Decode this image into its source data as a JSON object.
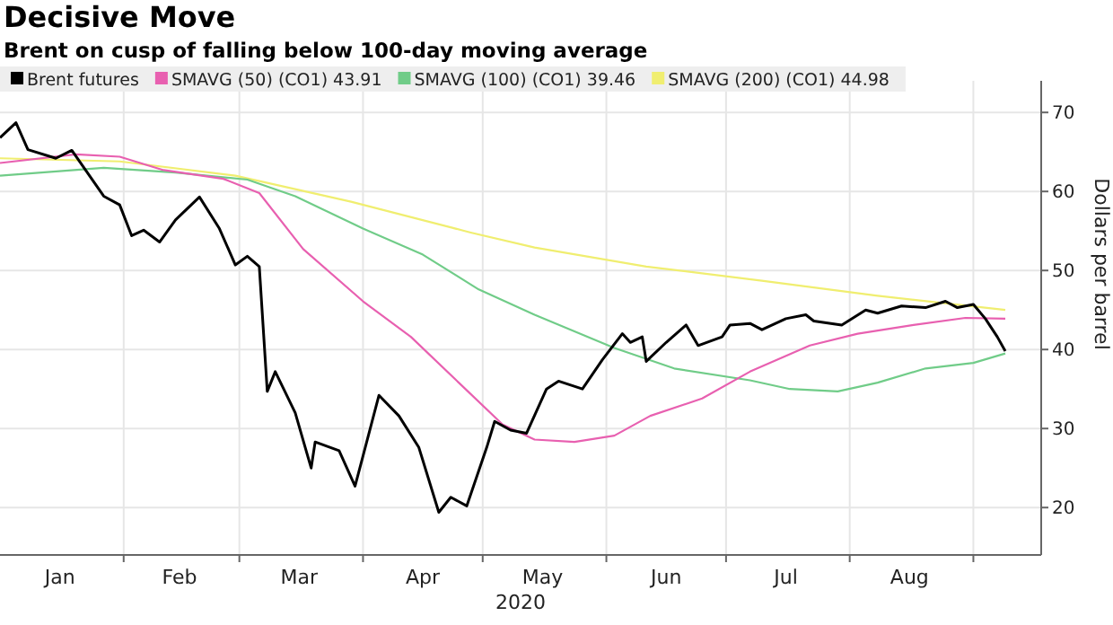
{
  "chart_data": {
    "type": "line",
    "title": "Decisive Move",
    "subtitle": "Brent on cusp of falling below 100-day moving average",
    "xlabel": "2020",
    "ylabel": "Dollars per barrel",
    "xlim": [
      "2020-01-01",
      "2020-09-18"
    ],
    "ylim": [
      14,
      74
    ],
    "xticks": [
      {
        "value": "2020-02-01",
        "label": null
      },
      {
        "value": "2020-03-01",
        "label": null
      },
      {
        "value": "2020-04-01",
        "label": null
      },
      {
        "value": "2020-05-01",
        "label": null
      },
      {
        "value": "2020-06-01",
        "label": null
      },
      {
        "value": "2020-07-01",
        "label": null
      },
      {
        "value": "2020-08-01",
        "label": null
      },
      {
        "value": "2020-09-01",
        "label": null
      },
      {
        "value": "2020-01-16",
        "label": "Jan"
      },
      {
        "value": "2020-02-15",
        "label": "Feb"
      },
      {
        "value": "2020-03-16",
        "label": "Mar"
      },
      {
        "value": "2020-04-16",
        "label": "Apr"
      },
      {
        "value": "2020-05-16",
        "label": "May"
      },
      {
        "value": "2020-06-16",
        "label": "Jun"
      },
      {
        "value": "2020-07-16",
        "label": "Jul"
      },
      {
        "value": "2020-08-16",
        "label": "Aug"
      }
    ],
    "yticks": [
      20,
      30,
      40,
      50,
      60,
      70
    ],
    "grid": true,
    "legend": "top left",
    "marker": "none",
    "line_style": "solid",
    "series": [
      {
        "name": "Brent futures",
        "color": "#000000",
        "x": [
          "2020-01-01",
          "2020-01-05",
          "2020-01-08",
          "2020-01-15",
          "2020-01-19",
          "2020-01-27",
          "2020-01-31",
          "2020-02-03",
          "2020-02-06",
          "2020-02-10",
          "2020-02-14",
          "2020-02-20",
          "2020-02-25",
          "2020-02-29",
          "2020-03-03",
          "2020-03-06",
          "2020-03-08",
          "2020-03-10",
          "2020-03-15",
          "2020-03-19",
          "2020-03-20",
          "2020-03-26",
          "2020-03-30",
          "2020-04-05",
          "2020-04-10",
          "2020-04-15",
          "2020-04-20",
          "2020-04-23",
          "2020-04-27",
          "2020-05-02",
          "2020-05-04",
          "2020-05-08",
          "2020-05-12",
          "2020-05-17",
          "2020-05-20",
          "2020-05-26",
          "2020-05-31",
          "2020-06-05",
          "2020-06-07",
          "2020-06-10",
          "2020-06-11",
          "2020-06-16",
          "2020-06-21",
          "2020-06-24",
          "2020-06-30",
          "2020-07-02",
          "2020-07-07",
          "2020-07-10",
          "2020-07-16",
          "2020-07-21",
          "2020-07-23",
          "2020-07-30",
          "2020-08-05",
          "2020-08-08",
          "2020-08-14",
          "2020-08-20",
          "2020-08-25",
          "2020-08-28",
          "2020-09-01",
          "2020-09-04",
          "2020-09-07",
          "2020-09-09"
        ],
        "values": [
          66.8,
          68.7,
          65.3,
          64.2,
          65.2,
          59.4,
          58.3,
          54.4,
          55.1,
          53.6,
          56.4,
          59.3,
          55.3,
          50.7,
          51.8,
          50.5,
          34.7,
          37.2,
          32.0,
          25.0,
          28.3,
          27.2,
          22.7,
          34.2,
          31.6,
          27.6,
          19.4,
          21.3,
          20.2,
          27.6,
          30.9,
          29.8,
          29.4,
          35.0,
          36.0,
          35.0,
          38.7,
          42.0,
          40.9,
          41.6,
          38.5,
          40.9,
          43.1,
          40.5,
          41.6,
          43.1,
          43.3,
          42.5,
          43.9,
          44.4,
          43.6,
          43.1,
          45.0,
          44.6,
          45.5,
          45.3,
          46.1,
          45.3,
          45.7,
          43.9,
          41.6,
          39.8
        ]
      },
      {
        "name": "SMAVG (50) (CO1) 43.91",
        "color": "#e860b0",
        "x": [
          "2020-01-01",
          "2020-01-20",
          "2020-01-31",
          "2020-02-11",
          "2020-02-26",
          "2020-03-06",
          "2020-03-17",
          "2020-04-01",
          "2020-04-13",
          "2020-04-25",
          "2020-05-06",
          "2020-05-14",
          "2020-05-24",
          "2020-06-03",
          "2020-06-12",
          "2020-06-25",
          "2020-07-07",
          "2020-07-22",
          "2020-08-03",
          "2020-08-17",
          "2020-08-30",
          "2020-09-09"
        ],
        "values": [
          63.6,
          64.7,
          64.4,
          62.7,
          61.6,
          59.8,
          52.7,
          46.1,
          41.6,
          35.8,
          30.5,
          28.6,
          28.3,
          29.1,
          31.6,
          33.8,
          37.2,
          40.5,
          42.0,
          43.1,
          44.0,
          43.9
        ]
      },
      {
        "name": "SMAVG (100) (CO1) 39.46",
        "color": "#70cc88",
        "x": [
          "2020-01-01",
          "2020-01-27",
          "2020-02-14",
          "2020-03-03",
          "2020-03-15",
          "2020-04-01",
          "2020-04-16",
          "2020-04-30",
          "2020-05-14",
          "2020-06-03",
          "2020-06-18",
          "2020-07-07",
          "2020-07-17",
          "2020-07-29",
          "2020-08-08",
          "2020-08-20",
          "2020-09-01",
          "2020-09-09"
        ],
        "values": [
          62.0,
          63.0,
          62.4,
          61.5,
          59.4,
          55.3,
          52.0,
          47.6,
          44.4,
          40.2,
          37.6,
          36.1,
          35.0,
          34.7,
          35.8,
          37.6,
          38.3,
          39.5
        ]
      },
      {
        "name": "SMAVG (200) (CO1) 44.98",
        "color": "#f0ee70",
        "x": [
          "2020-01-01",
          "2020-01-31",
          "2020-02-29",
          "2020-03-29",
          "2020-04-28",
          "2020-05-14",
          "2020-06-11",
          "2020-07-10",
          "2020-08-08",
          "2020-09-09"
        ],
        "values": [
          64.2,
          63.8,
          62.0,
          58.7,
          54.8,
          52.9,
          50.5,
          48.7,
          46.8,
          45.0
        ]
      }
    ]
  }
}
